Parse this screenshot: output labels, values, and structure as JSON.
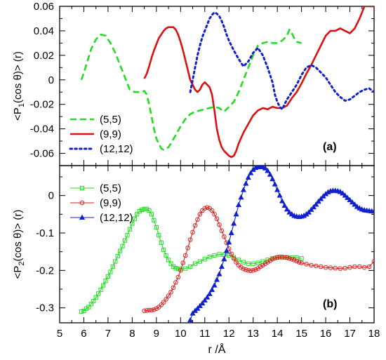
{
  "chart_data": [
    {
      "type": "line",
      "panel_label": "(a)",
      "ylabel_main": "<P",
      "ylabel_sub": "1",
      "ylabel_tail": "(cos θ)> (r)",
      "xlim": [
        5,
        18
      ],
      "ylim": [
        -0.07,
        0.06
      ],
      "y_ticks": [
        -0.06,
        -0.04,
        -0.02,
        0,
        0.02,
        0.04,
        0.06
      ],
      "y_tick_labels": [
        "-0.06",
        "-0.04",
        "-0.02",
        "0",
        "0.02",
        "0.04",
        "0.06"
      ],
      "legend": "bottom-left",
      "series": [
        {
          "name": "(5,5)",
          "color": "#22dd22",
          "style": "dashed",
          "x": [
            5.9,
            6.1,
            6.3,
            6.5,
            6.7,
            6.9,
            7.1,
            7.3,
            7.5,
            7.7,
            7.9,
            8.1,
            8.3,
            8.4,
            8.5,
            8.6,
            8.7,
            8.8,
            8.9,
            9.0,
            9.1,
            9.2,
            9.3,
            9.4,
            9.5,
            9.6,
            9.8,
            10.0,
            10.2,
            10.4,
            10.6,
            10.8,
            11.0,
            11.2,
            11.4,
            11.6,
            11.8,
            12.0,
            12.2,
            12.4,
            12.6,
            12.8,
            13.0,
            13.2,
            13.4,
            13.6,
            13.8,
            14.0,
            14.2,
            14.4,
            14.5,
            14.6,
            14.7,
            14.8,
            15.0
          ],
          "y": [
            0.0,
            0.012,
            0.025,
            0.033,
            0.037,
            0.036,
            0.03,
            0.022,
            0.012,
            0.002,
            -0.008,
            -0.01,
            -0.01,
            -0.01,
            -0.009,
            -0.012,
            -0.02,
            -0.03,
            -0.04,
            -0.048,
            -0.052,
            -0.056,
            -0.057,
            -0.056,
            -0.055,
            -0.052,
            -0.045,
            -0.038,
            -0.032,
            -0.028,
            -0.026,
            -0.025,
            -0.024,
            -0.023,
            -0.022,
            -0.023,
            -0.026,
            -0.022,
            -0.018,
            -0.01,
            0.0,
            0.01,
            0.02,
            0.028,
            0.03,
            0.031,
            0.03,
            0.03,
            0.032,
            0.036,
            0.041,
            0.038,
            0.034,
            0.031,
            0.03
          ]
        },
        {
          "name": "(9,9)",
          "color": "#dd1111",
          "style": "solid",
          "x": [
            8.5,
            8.6,
            8.7,
            8.8,
            8.9,
            9.0,
            9.1,
            9.2,
            9.3,
            9.4,
            9.5,
            9.6,
            9.7,
            9.8,
            9.9,
            10.0,
            10.1,
            10.2,
            10.3,
            10.4,
            10.5,
            10.6,
            10.7,
            10.8,
            10.9,
            11.0,
            11.1,
            11.2,
            11.3,
            11.4,
            11.5,
            11.6,
            11.7,
            11.8,
            11.9,
            12.0,
            12.1,
            12.2,
            12.3,
            12.4,
            12.6,
            12.8,
            13.0,
            13.2,
            13.4,
            13.6,
            13.8,
            14.0,
            14.2,
            14.4,
            14.6,
            14.8,
            15.0,
            15.2,
            15.4,
            15.6,
            15.8,
            16.0,
            16.2,
            16.4,
            16.6,
            16.8,
            17.0,
            17.2,
            17.4,
            17.6,
            17.8,
            18.0
          ],
          "y": [
            0.001,
            0.005,
            0.011,
            0.018,
            0.024,
            0.029,
            0.034,
            0.037,
            0.04,
            0.042,
            0.043,
            0.043,
            0.043,
            0.041,
            0.037,
            0.031,
            0.024,
            0.016,
            0.008,
            0.0,
            -0.004,
            -0.008,
            -0.01,
            -0.008,
            -0.004,
            -0.002,
            -0.004,
            -0.006,
            -0.012,
            -0.025,
            -0.04,
            -0.049,
            -0.055,
            -0.058,
            -0.06,
            -0.062,
            -0.063,
            -0.062,
            -0.058,
            -0.052,
            -0.043,
            -0.036,
            -0.029,
            -0.025,
            -0.023,
            -0.024,
            -0.022,
            -0.023,
            -0.023,
            -0.021,
            -0.015,
            -0.01,
            -0.003,
            0.005,
            0.012,
            0.02,
            0.028,
            0.036,
            0.04,
            0.04,
            0.042,
            0.04,
            0.038,
            0.042,
            0.05,
            0.06,
            0.06,
            0.06
          ]
        },
        {
          "name": "(12,12)",
          "color": "#1122cc",
          "style": "dotted",
          "x": [
            10.4,
            10.5,
            10.6,
            10.7,
            10.8,
            10.9,
            11.0,
            11.1,
            11.2,
            11.3,
            11.4,
            11.5,
            11.6,
            11.7,
            11.8,
            11.9,
            12.0,
            12.2,
            12.4,
            12.6,
            12.8,
            13.0,
            13.2,
            13.4,
            13.6,
            13.8,
            13.9,
            14.0,
            14.1,
            14.2,
            14.3,
            14.4,
            14.6,
            14.8,
            15.0,
            15.2,
            15.4,
            15.6,
            15.8,
            16.0,
            16.2,
            16.4,
            16.6,
            16.8,
            17.0,
            17.2,
            17.4,
            17.6,
            17.8,
            18.0
          ],
          "y": [
            -0.01,
            0.0,
            0.01,
            0.02,
            0.028,
            0.035,
            0.04,
            0.045,
            0.05,
            0.053,
            0.055,
            0.054,
            0.052,
            0.048,
            0.043,
            0.037,
            0.032,
            0.024,
            0.017,
            0.011,
            0.015,
            0.022,
            0.026,
            0.02,
            0.01,
            -0.002,
            -0.012,
            -0.018,
            -0.022,
            -0.024,
            -0.02,
            -0.016,
            -0.01,
            -0.004,
            0.004,
            0.01,
            0.012,
            0.01,
            0.006,
            0.002,
            -0.004,
            -0.01,
            -0.014,
            -0.017,
            -0.016,
            -0.013,
            -0.01,
            -0.008,
            -0.007,
            -0.01
          ]
        }
      ]
    },
    {
      "type": "line",
      "panel_label": "(b)",
      "xlabel": "r /Å",
      "ylabel_main": "<P",
      "ylabel_sub": "2",
      "ylabel_tail": "(cos θ)> (r)",
      "xlim": [
        5,
        18
      ],
      "ylim": [
        -0.34,
        0.08
      ],
      "x_ticks": [
        5,
        6,
        7,
        8,
        9,
        10,
        11,
        12,
        13,
        14,
        15,
        16,
        17,
        18
      ],
      "x_tick_labels": [
        "5",
        "6",
        "7",
        "8",
        "9",
        "10",
        "11",
        "12",
        "13",
        "14",
        "15",
        "16",
        "17",
        "18"
      ],
      "y_ticks": [
        -0.3,
        -0.2,
        -0.1,
        0
      ],
      "y_tick_labels": [
        "-0.3",
        "-0.2",
        "-0.1",
        "0"
      ],
      "legend": "top-left",
      "series": [
        {
          "name": "(5,5)",
          "color": "#22dd22",
          "marker": "square",
          "x": [
            5.9,
            6.0,
            6.1,
            6.2,
            6.3,
            6.4,
            6.5,
            6.6,
            6.7,
            6.8,
            6.9,
            7.0,
            7.1,
            7.2,
            7.3,
            7.4,
            7.5,
            7.6,
            7.7,
            7.8,
            7.9,
            8.0,
            8.1,
            8.2,
            8.3,
            8.4,
            8.5,
            8.6,
            8.7,
            8.8,
            8.9,
            9.0,
            9.1,
            9.2,
            9.3,
            9.4,
            9.5,
            9.6,
            9.7,
            9.8,
            9.9,
            10.0,
            10.2,
            10.4,
            10.6,
            10.8,
            11.0,
            11.2,
            11.4,
            11.6,
            11.8,
            12.0,
            12.2,
            12.4,
            12.6,
            12.8,
            13.0,
            13.2,
            13.4,
            13.6,
            13.8,
            14.0,
            14.2,
            14.4,
            14.6,
            14.8,
            15.0
          ],
          "y": [
            -0.31,
            -0.308,
            -0.302,
            -0.298,
            -0.29,
            -0.282,
            -0.272,
            -0.262,
            -0.252,
            -0.24,
            -0.228,
            -0.216,
            -0.204,
            -0.19,
            -0.176,
            -0.162,
            -0.148,
            -0.135,
            -0.12,
            -0.106,
            -0.09,
            -0.075,
            -0.062,
            -0.05,
            -0.042,
            -0.038,
            -0.036,
            -0.036,
            -0.04,
            -0.05,
            -0.066,
            -0.085,
            -0.106,
            -0.126,
            -0.145,
            -0.16,
            -0.172,
            -0.182,
            -0.19,
            -0.194,
            -0.196,
            -0.196,
            -0.195,
            -0.19,
            -0.182,
            -0.176,
            -0.17,
            -0.164,
            -0.16,
            -0.157,
            -0.158,
            -0.16,
            -0.165,
            -0.172,
            -0.178,
            -0.182,
            -0.182,
            -0.18,
            -0.176,
            -0.172,
            -0.168,
            -0.166,
            -0.165,
            -0.165,
            -0.166,
            -0.166,
            -0.168
          ]
        },
        {
          "name": "(9,9)",
          "color": "#dd2222",
          "marker": "circle",
          "x": [
            8.5,
            8.6,
            8.7,
            8.8,
            8.9,
            9.0,
            9.1,
            9.2,
            9.3,
            9.4,
            9.5,
            9.6,
            9.7,
            9.8,
            9.9,
            10.0,
            10.1,
            10.2,
            10.3,
            10.4,
            10.5,
            10.6,
            10.7,
            10.8,
            10.9,
            11.0,
            11.1,
            11.2,
            11.3,
            11.4,
            11.5,
            11.6,
            11.7,
            11.8,
            11.9,
            12.0,
            12.1,
            12.2,
            12.3,
            12.4,
            12.5,
            12.6,
            12.7,
            12.8,
            12.9,
            13.0,
            13.1,
            13.2,
            13.3,
            13.4,
            13.5,
            13.6,
            13.7,
            13.8,
            13.9,
            14.0,
            14.1,
            14.2,
            14.3,
            14.4,
            14.5,
            14.6,
            14.7,
            14.8,
            14.9,
            15.0,
            15.2,
            15.4,
            15.6,
            15.8,
            16.0,
            16.2,
            16.4,
            16.6,
            16.8,
            17.0,
            17.2,
            17.4,
            17.6,
            17.8,
            18.0
          ],
          "y": [
            -0.308,
            -0.307,
            -0.306,
            -0.306,
            -0.305,
            -0.302,
            -0.298,
            -0.292,
            -0.285,
            -0.277,
            -0.268,
            -0.258,
            -0.246,
            -0.232,
            -0.218,
            -0.2,
            -0.18,
            -0.16,
            -0.14,
            -0.118,
            -0.098,
            -0.08,
            -0.064,
            -0.05,
            -0.04,
            -0.034,
            -0.032,
            -0.034,
            -0.04,
            -0.05,
            -0.062,
            -0.078,
            -0.094,
            -0.11,
            -0.126,
            -0.142,
            -0.156,
            -0.168,
            -0.178,
            -0.186,
            -0.192,
            -0.196,
            -0.198,
            -0.2,
            -0.201,
            -0.2,
            -0.198,
            -0.195,
            -0.19,
            -0.186,
            -0.182,
            -0.178,
            -0.174,
            -0.17,
            -0.167,
            -0.165,
            -0.164,
            -0.164,
            -0.165,
            -0.166,
            -0.168,
            -0.17,
            -0.172,
            -0.175,
            -0.178,
            -0.18,
            -0.183,
            -0.186,
            -0.188,
            -0.19,
            -0.192,
            -0.193,
            -0.194,
            -0.195,
            -0.194,
            -0.192,
            -0.19,
            -0.19,
            -0.192,
            -0.19,
            -0.176
          ]
        },
        {
          "name": "(12,12)",
          "color": "#1122cc",
          "marker": "triangle",
          "x": [
            10.4,
            10.5,
            10.6,
            10.7,
            10.8,
            10.9,
            11.0,
            11.1,
            11.2,
            11.3,
            11.4,
            11.5,
            11.6,
            11.7,
            11.8,
            11.9,
            12.0,
            12.1,
            12.2,
            12.3,
            12.4,
            12.5,
            12.6,
            12.7,
            12.8,
            12.9,
            13.0,
            13.1,
            13.2,
            13.3,
            13.4,
            13.5,
            13.6,
            13.7,
            13.8,
            13.9,
            14.0,
            14.1,
            14.2,
            14.3,
            14.4,
            14.5,
            14.6,
            14.7,
            14.8,
            14.9,
            15.0,
            15.1,
            15.2,
            15.3,
            15.4,
            15.5,
            15.6,
            15.7,
            15.8,
            15.9,
            16.0,
            16.1,
            16.2,
            16.3,
            16.4,
            16.5,
            16.6,
            16.7,
            16.8,
            16.9,
            17.0,
            17.1,
            17.2,
            17.3,
            17.4,
            17.5,
            17.6,
            17.7,
            17.8,
            17.9,
            18.0
          ],
          "y": [
            -0.333,
            -0.315,
            -0.308,
            -0.302,
            -0.295,
            -0.288,
            -0.28,
            -0.272,
            -0.263,
            -0.252,
            -0.24,
            -0.225,
            -0.21,
            -0.19,
            -0.17,
            -0.148,
            -0.125,
            -0.1,
            -0.075,
            -0.05,
            -0.025,
            -0.005,
            0.015,
            0.032,
            0.048,
            0.06,
            0.069,
            0.074,
            0.076,
            0.077,
            0.076,
            0.073,
            0.066,
            0.056,
            0.044,
            0.03,
            0.015,
            0.0,
            -0.015,
            -0.027,
            -0.037,
            -0.045,
            -0.05,
            -0.054,
            -0.056,
            -0.057,
            -0.056,
            -0.054,
            -0.05,
            -0.045,
            -0.038,
            -0.031,
            -0.024,
            -0.016,
            -0.009,
            -0.002,
            0.004,
            0.009,
            0.012,
            0.013,
            0.013,
            0.012,
            0.01,
            0.006,
            0.0,
            -0.006,
            -0.012,
            -0.018,
            -0.024,
            -0.03,
            -0.034,
            -0.037,
            -0.039,
            -0.04,
            -0.041,
            -0.042,
            -0.042
          ]
        }
      ]
    }
  ]
}
